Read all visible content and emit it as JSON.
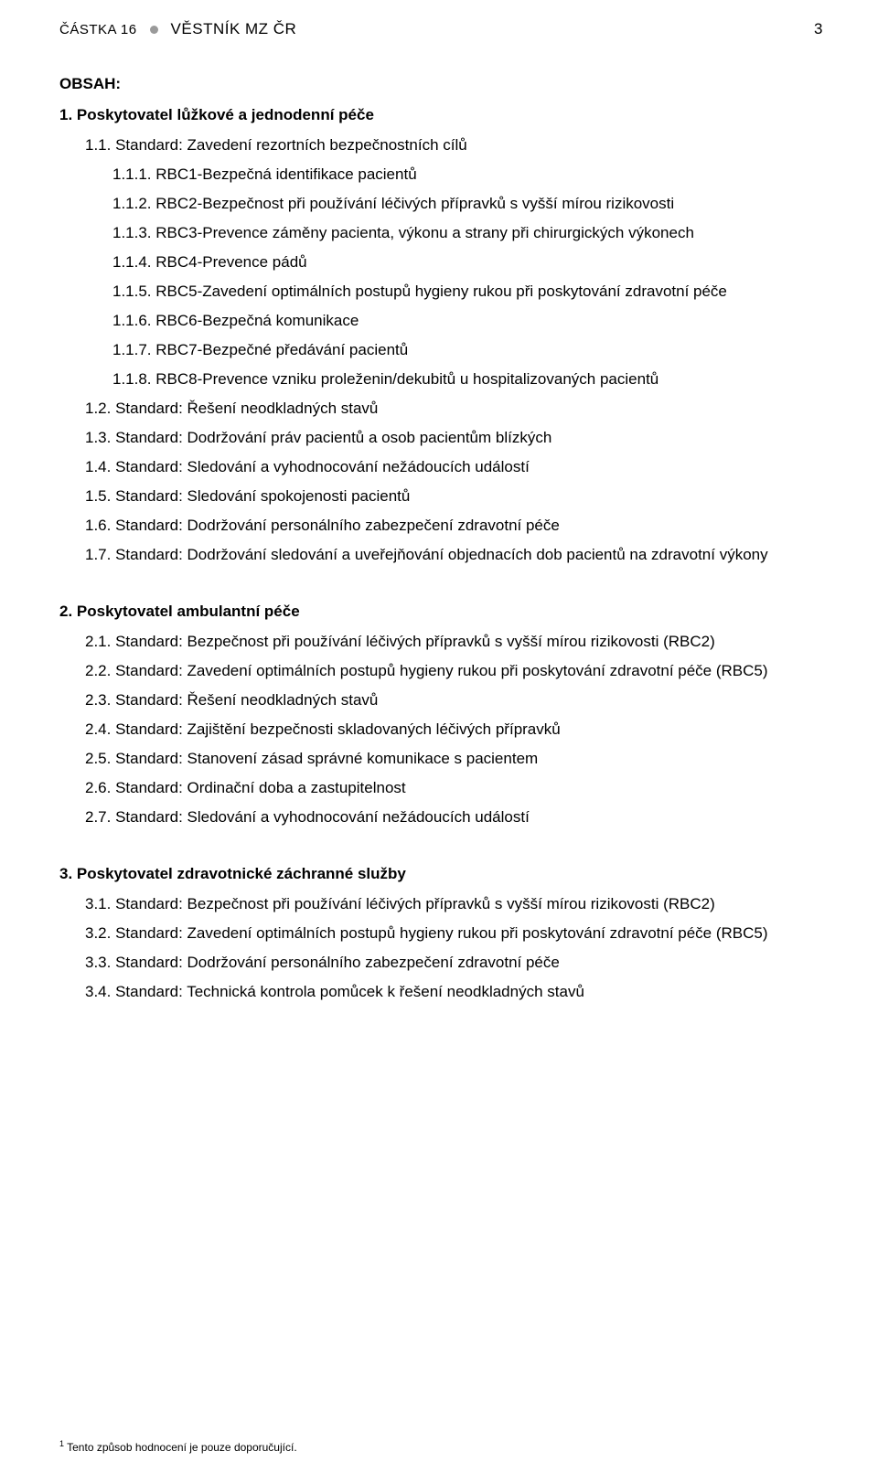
{
  "header": {
    "part_label": "ČÁSTKA 16",
    "title": "VĚSTNÍK MZ ČR",
    "page_number": "3"
  },
  "obsah_label": "OBSAH:",
  "sections": [
    {
      "title": "1. Poskytovatel lůžkové a jednodenní péče",
      "items": [
        {
          "indent": 1,
          "text": "1.1. Standard: Zavedení rezortních bezpečnostních cílů"
        },
        {
          "indent": 2,
          "text": "1.1.1. RBC1-Bezpečná identifikace pacientů"
        },
        {
          "indent": 2,
          "text": "1.1.2. RBC2-Bezpečnost při používání léčivých přípravků s vyšší mírou rizikovosti"
        },
        {
          "indent": 2,
          "text": "1.1.3. RBC3-Prevence záměny pacienta, výkonu a strany při chirurgických výkonech"
        },
        {
          "indent": 2,
          "text": "1.1.4. RBC4-Prevence pádů"
        },
        {
          "indent": 2,
          "text": "1.1.5. RBC5-Zavedení optimálních postupů hygieny rukou při poskytování zdravotní péče"
        },
        {
          "indent": 2,
          "text": "1.1.6. RBC6-Bezpečná komunikace"
        },
        {
          "indent": 2,
          "text": "1.1.7. RBC7-Bezpečné předávání pacientů"
        },
        {
          "indent": 2,
          "text": "1.1.8. RBC8-Prevence vzniku proleženin/dekubitů u hospitalizovaných pacientů"
        },
        {
          "indent": 1,
          "text": "1.2. Standard: Řešení neodkladných stavů"
        },
        {
          "indent": 1,
          "text": "1.3. Standard: Dodržování práv pacientů a osob pacientům blízkých"
        },
        {
          "indent": 1,
          "text": "1.4. Standard: Sledování a vyhodnocování nežádoucích událostí"
        },
        {
          "indent": 1,
          "text": "1.5. Standard: Sledování spokojenosti pacientů"
        },
        {
          "indent": 1,
          "text": "1.6. Standard: Dodržování personálního zabezpečení zdravotní péče"
        },
        {
          "indent": 1,
          "text": "1.7. Standard: Dodržování sledování a uveřejňování objednacích dob pacientů na zdravotní výkony"
        }
      ]
    },
    {
      "title": "2. Poskytovatel ambulantní péče",
      "items": [
        {
          "indent": 1,
          "text": "2.1. Standard: Bezpečnost při používání léčivých přípravků s vyšší mírou rizikovosti (RBC2)"
        },
        {
          "indent": 1,
          "text": "2.2. Standard: Zavedení optimálních postupů hygieny rukou při poskytování zdravotní péče (RBC5)"
        },
        {
          "indent": 1,
          "text": "2.3. Standard: Řešení neodkladných stavů"
        },
        {
          "indent": 1,
          "text": "2.4.  Standard: Zajištění bezpečnosti skladovaných léčivých přípravků"
        },
        {
          "indent": 1,
          "text": "2.5.  Standard: Stanovení zásad správné komunikace s pacientem"
        },
        {
          "indent": 1,
          "text": "2.6.  Standard: Ordinační doba a zastupitelnost"
        },
        {
          "indent": 1,
          "text": "2.7.  Standard: Sledování a vyhodnocování nežádoucích událostí"
        }
      ]
    },
    {
      "title": "3. Poskytovatel zdravotnické záchranné služby",
      "items": [
        {
          "indent": 1,
          "text": "3.1. Standard: Bezpečnost při používání léčivých přípravků s vyšší mírou rizikovosti (RBC2)"
        },
        {
          "indent": 1,
          "text": "3.2. Standard: Zavedení optimálních postupů hygieny rukou při poskytování zdravotní péče (RBC5)"
        },
        {
          "indent": 1,
          "text": "3.3. Standard: Dodržování personálního zabezpečení zdravotní péče"
        },
        {
          "indent": 1,
          "text": "3.4. Standard: Technická kontrola pomůcek k řešení neodkladných stavů"
        }
      ]
    }
  ],
  "footnote": {
    "marker": "1",
    "text": " Tento způsob hodnocení je pouze doporučující."
  }
}
